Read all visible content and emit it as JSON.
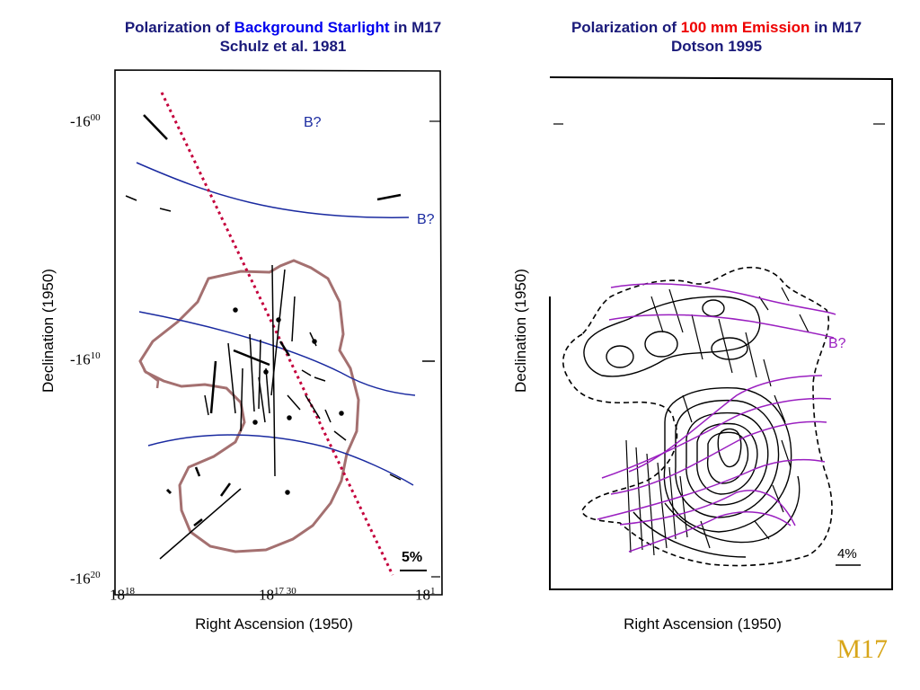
{
  "left_panel": {
    "title_prefix": "Polarization of ",
    "title_highlight": "Background Starlight",
    "title_suffix": " in M17",
    "subtitle": "Schulz et al. 1981",
    "xlabel": "Right Ascension (1950)",
    "ylabel": "Declination (1950)",
    "y_ticks": [
      "-16",
      "-16",
      "-16"
    ],
    "y_tick_sups": [
      "00",
      "10",
      "20"
    ],
    "x_ticks": [
      "18",
      "18",
      "18"
    ],
    "x_tick_sups": [
      "18",
      "17 30",
      "1"
    ],
    "b_labels": [
      "B?",
      "B?"
    ],
    "scale_label": "5%",
    "colors": {
      "field_line": "#1a2aa0",
      "ridge": "#c4003c",
      "contour": "#a47070"
    }
  },
  "right_panel": {
    "title_prefix": "Polarization of ",
    "title_highlight": "100 mm Emission",
    "title_suffix": " in M17",
    "subtitle": "Dotson 1995",
    "xlabel": "Right Ascension (1950)",
    "ylabel": "Declination (1950)",
    "b_label": "B?",
    "scale_label": "4%",
    "colors": {
      "field_line": "#9a1fc0"
    }
  },
  "brand": "M17"
}
